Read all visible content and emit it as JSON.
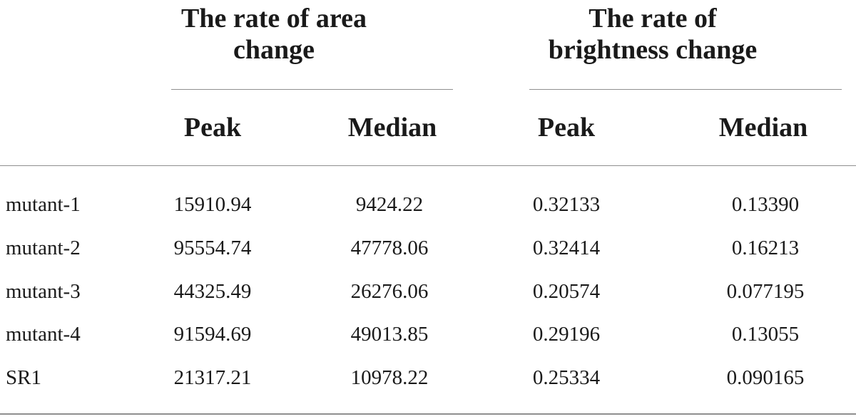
{
  "table": {
    "group_area": {
      "line1": "The rate of area",
      "line2": "change"
    },
    "group_brightness": {
      "line1": "The rate of",
      "line2": "brightness change"
    },
    "columns": {
      "area_peak": "Peak",
      "area_median": "Median",
      "brightness_peak": "Peak",
      "brightness_median": "Median"
    },
    "rows": [
      {
        "label": "mutant-1",
        "area_peak": "15910.94",
        "area_median": "9424.22",
        "brightness_peak": "0.32133",
        "brightness_median": "0.13390"
      },
      {
        "label": "mutant-2",
        "area_peak": "95554.74",
        "area_median": "47778.06",
        "brightness_peak": "0.32414",
        "brightness_median": "0.16213"
      },
      {
        "label": "mutant-3",
        "area_peak": "44325.49",
        "area_median": "26276.06",
        "brightness_peak": "0.20574",
        "brightness_median": "0.077195"
      },
      {
        "label": "mutant-4",
        "area_peak": "91594.69",
        "area_median": "49013.85",
        "brightness_peak": "0.29196",
        "brightness_median": "0.13055"
      },
      {
        "label": "SR1",
        "area_peak": "21317.21",
        "area_median": "10978.22",
        "brightness_peak": "0.25334",
        "brightness_median": "0.090165"
      }
    ]
  }
}
